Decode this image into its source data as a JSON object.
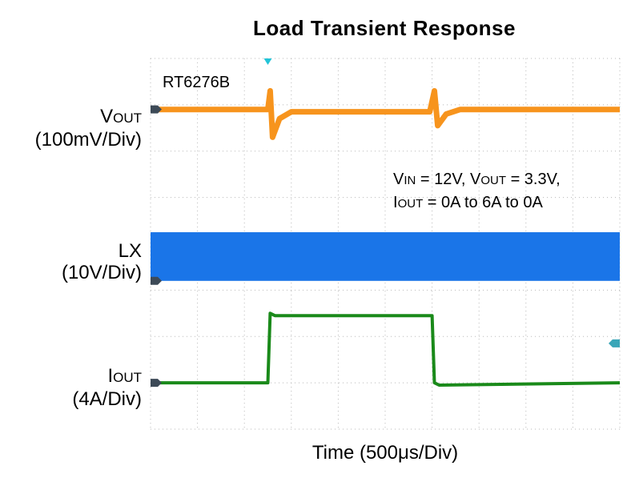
{
  "title": "Load Transient Response",
  "device_label": "RT6276B",
  "conditions": {
    "line1": {
      "vin_main": "V",
      "vin_sub": "IN",
      "vin_rest": " = 12V, ",
      "vout_main": "V",
      "vout_sub": "OUT",
      "vout_rest": " = 3.3V,"
    },
    "line2": {
      "iout_main": "I",
      "iout_sub": "OUT",
      "iout_rest": " = 0A to 6A to 0A"
    }
  },
  "channels": [
    {
      "main": "V",
      "sub": "OUT",
      "scale": "(100mV/Div)",
      "color": "#f7941d"
    },
    {
      "main": "LX",
      "sub": "",
      "scale": "(10V/Div)",
      "color": "#1a75e8"
    },
    {
      "main": "I",
      "sub": "OUT",
      "scale": "(4A/Div)",
      "color": "#1a8a1a"
    }
  ],
  "xlabel": {
    "prefix": "Time  (500",
    "mu": "μ",
    "suffix": "s/Div)"
  },
  "chart_data": {
    "type": "line",
    "x_unit": "Div",
    "x_range": [
      0,
      10
    ],
    "y_unit": "Div",
    "y_range": [
      0,
      8
    ],
    "grid": true,
    "time_per_div": "500μs",
    "series": [
      {
        "name": "VOUT",
        "scale": "100mV/Div",
        "x": [
          0,
          2.5,
          2.55,
          2.6,
          2.75,
          3.0,
          5.95,
          6.05,
          6.12,
          6.3,
          6.6,
          10
        ],
        "y": [
          6.9,
          6.9,
          7.3,
          6.3,
          6.7,
          6.85,
          6.85,
          7.3,
          6.55,
          6.8,
          6.9,
          6.9
        ]
      },
      {
        "name": "LX",
        "scale": "10V/Div",
        "switching": true,
        "band": [
          3.2,
          4.25
        ],
        "x": [
          0,
          10
        ],
        "y": [
          3.2,
          3.2
        ]
      },
      {
        "name": "IOUT",
        "scale": "4A/Div",
        "x": [
          0,
          2.5,
          2.55,
          2.65,
          6.0,
          6.05,
          6.15,
          10
        ],
        "y": [
          1.0,
          1.0,
          2.5,
          2.45,
          2.45,
          1.0,
          0.95,
          1.0
        ]
      }
    ],
    "events": [
      "load step 0A to 6A",
      "load release 6A to 0A"
    ]
  }
}
